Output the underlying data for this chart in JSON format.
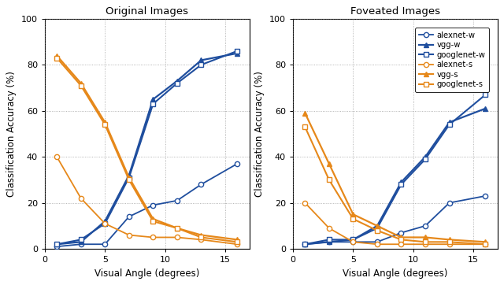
{
  "x": [
    1,
    3,
    5,
    7,
    9,
    11,
    13,
    16
  ],
  "orig": {
    "alexnet_w": [
      1,
      2,
      2,
      14,
      19,
      21,
      28,
      37
    ],
    "vgg_w": [
      2,
      3,
      12,
      32,
      65,
      73,
      82,
      85
    ],
    "googlenet_w": [
      2,
      4,
      11,
      31,
      63,
      72,
      80,
      86
    ],
    "alexnet_s": [
      40,
      22,
      11,
      6,
      5,
      5,
      4,
      2
    ],
    "vgg_s": [
      84,
      72,
      55,
      31,
      13,
      9,
      6,
      4
    ],
    "googlenet_s": [
      83,
      71,
      54,
      30,
      12,
      9,
      5,
      3
    ]
  },
  "fov": {
    "alexnet_w": [
      2,
      3,
      3,
      3,
      7,
      10,
      20,
      23
    ],
    "vgg_w": [
      2,
      3,
      4,
      10,
      29,
      40,
      55,
      61
    ],
    "googlenet_w": [
      2,
      4,
      4,
      9,
      28,
      39,
      54,
      67
    ],
    "alexnet_s": [
      20,
      9,
      3,
      2,
      2,
      2,
      2,
      2
    ],
    "vgg_s": [
      59,
      37,
      15,
      10,
      5,
      5,
      4,
      3
    ],
    "googlenet_s": [
      53,
      30,
      13,
      8,
      4,
      3,
      3,
      2
    ]
  },
  "blue": "#1f4e9e",
  "orange": "#e6881a",
  "title_orig": "Original Images",
  "title_fov": "Foveated Images",
  "xlabel": "Visual Angle (degrees)",
  "ylabel": "Classification Accuracy (%)",
  "ylim": [
    0,
    100
  ],
  "xlim": [
    0,
    17
  ],
  "yticks": [
    0,
    20,
    40,
    60,
    80,
    100
  ],
  "xticks": [
    0,
    5,
    10,
    15
  ],
  "legend_labels": [
    "alexnet-w",
    "vgg-w",
    "googlenet-w",
    "alexnet-s",
    "vgg-s",
    "googlenet-s"
  ]
}
